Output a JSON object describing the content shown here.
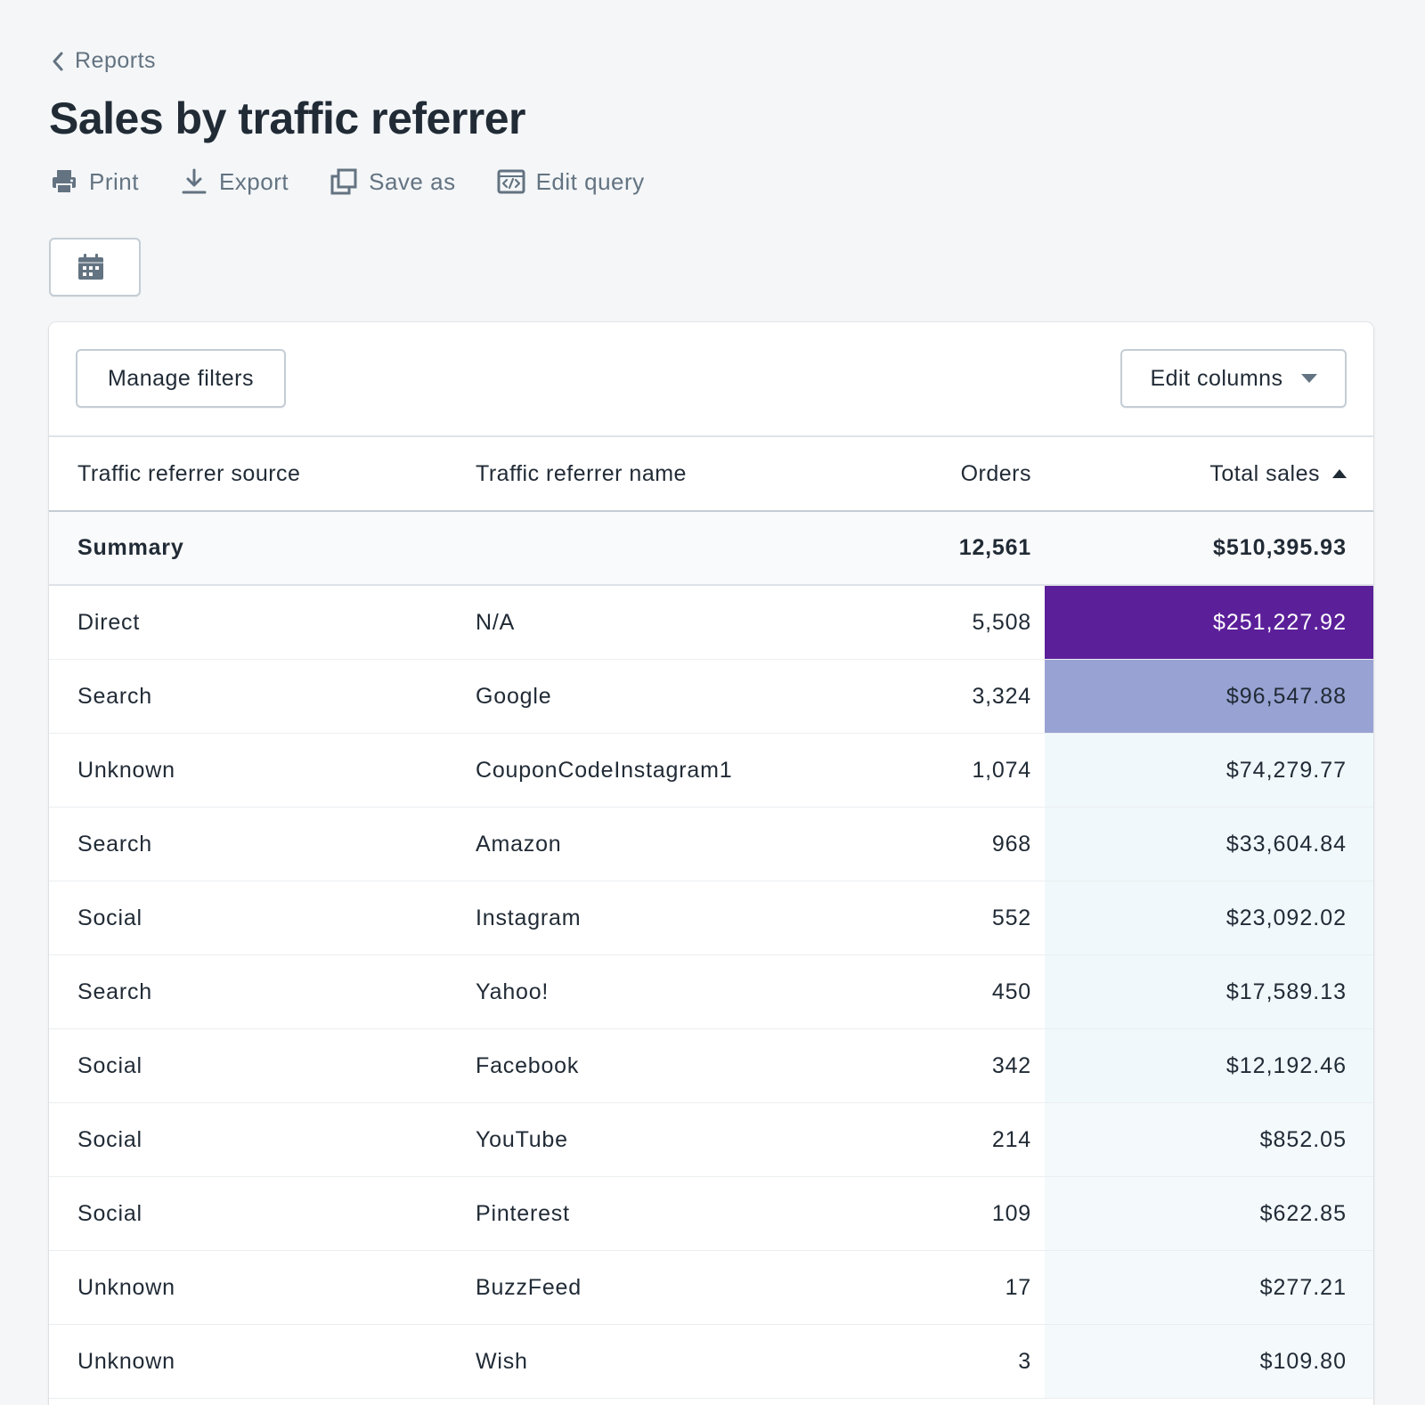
{
  "breadcrumb": {
    "label": "Reports"
  },
  "page_title": "Sales by traffic referrer",
  "actions": [
    {
      "label": "Print",
      "icon": "print-icon"
    },
    {
      "label": "Export",
      "icon": "download-icon"
    },
    {
      "label": "Save as",
      "icon": "copy-icon"
    },
    {
      "label": "Edit query",
      "icon": "code-icon"
    }
  ],
  "date_picker": {
    "icon": "calendar-icon"
  },
  "toolbar": {
    "manage_filters": "Manage filters",
    "edit_columns": "Edit columns"
  },
  "table": {
    "columns": [
      "Traffic referrer source",
      "Traffic referrer name",
      "Orders",
      "Total sales"
    ],
    "sorted_column": "Total sales",
    "summary": {
      "label": "Summary",
      "orders": "12,561",
      "total_sales": "$510,395.93"
    },
    "rows": [
      {
        "source": "Direct",
        "name": "N/A",
        "orders": "5,508",
        "total_sales": "$251,227.92",
        "heat": "#5c1f9a",
        "text_color": "#ffffff"
      },
      {
        "source": "Search",
        "name": "Google",
        "orders": "3,324",
        "total_sales": "$96,547.88",
        "heat": "#98a2d3",
        "text_color": "#212b36"
      },
      {
        "source": "Unknown",
        "name": "CouponCodeInstagram1",
        "orders": "1,074",
        "total_sales": "$74,279.77",
        "heat": "#f0f8fb",
        "text_color": "#212b36"
      },
      {
        "source": "Search",
        "name": "Amazon",
        "orders": "968",
        "total_sales": "$33,604.84",
        "heat": "#f0f8fb",
        "text_color": "#212b36"
      },
      {
        "source": "Social",
        "name": "Instagram",
        "orders": "552",
        "total_sales": "$23,092.02",
        "heat": "#f0f8fb",
        "text_color": "#212b36"
      },
      {
        "source": "Search",
        "name": "Yahoo!",
        "orders": "450",
        "total_sales": "$17,589.13",
        "heat": "#f0f8fb",
        "text_color": "#212b36"
      },
      {
        "source": "Social",
        "name": "Facebook",
        "orders": "342",
        "total_sales": "$12,192.46",
        "heat": "#f0f8fb",
        "text_color": "#212b36"
      },
      {
        "source": "Social",
        "name": "YouTube",
        "orders": "214",
        "total_sales": "$852.05",
        "heat": "#f4f9fb",
        "text_color": "#212b36"
      },
      {
        "source": "Social",
        "name": "Pinterest",
        "orders": "109",
        "total_sales": "$622.85",
        "heat": "#f4f9fb",
        "text_color": "#212b36"
      },
      {
        "source": "Unknown",
        "name": "BuzzFeed",
        "orders": "17",
        "total_sales": "$277.21",
        "heat": "#f4f9fb",
        "text_color": "#212b36"
      },
      {
        "source": "Unknown",
        "name": "Wish",
        "orders": "3",
        "total_sales": "$109.80",
        "heat": "#f4f9fb",
        "text_color": "#212b36"
      }
    ]
  },
  "colors": {
    "background": "#f4f6f8",
    "text": "#212b36",
    "muted": "#637381",
    "border": "#c4cdd5"
  }
}
